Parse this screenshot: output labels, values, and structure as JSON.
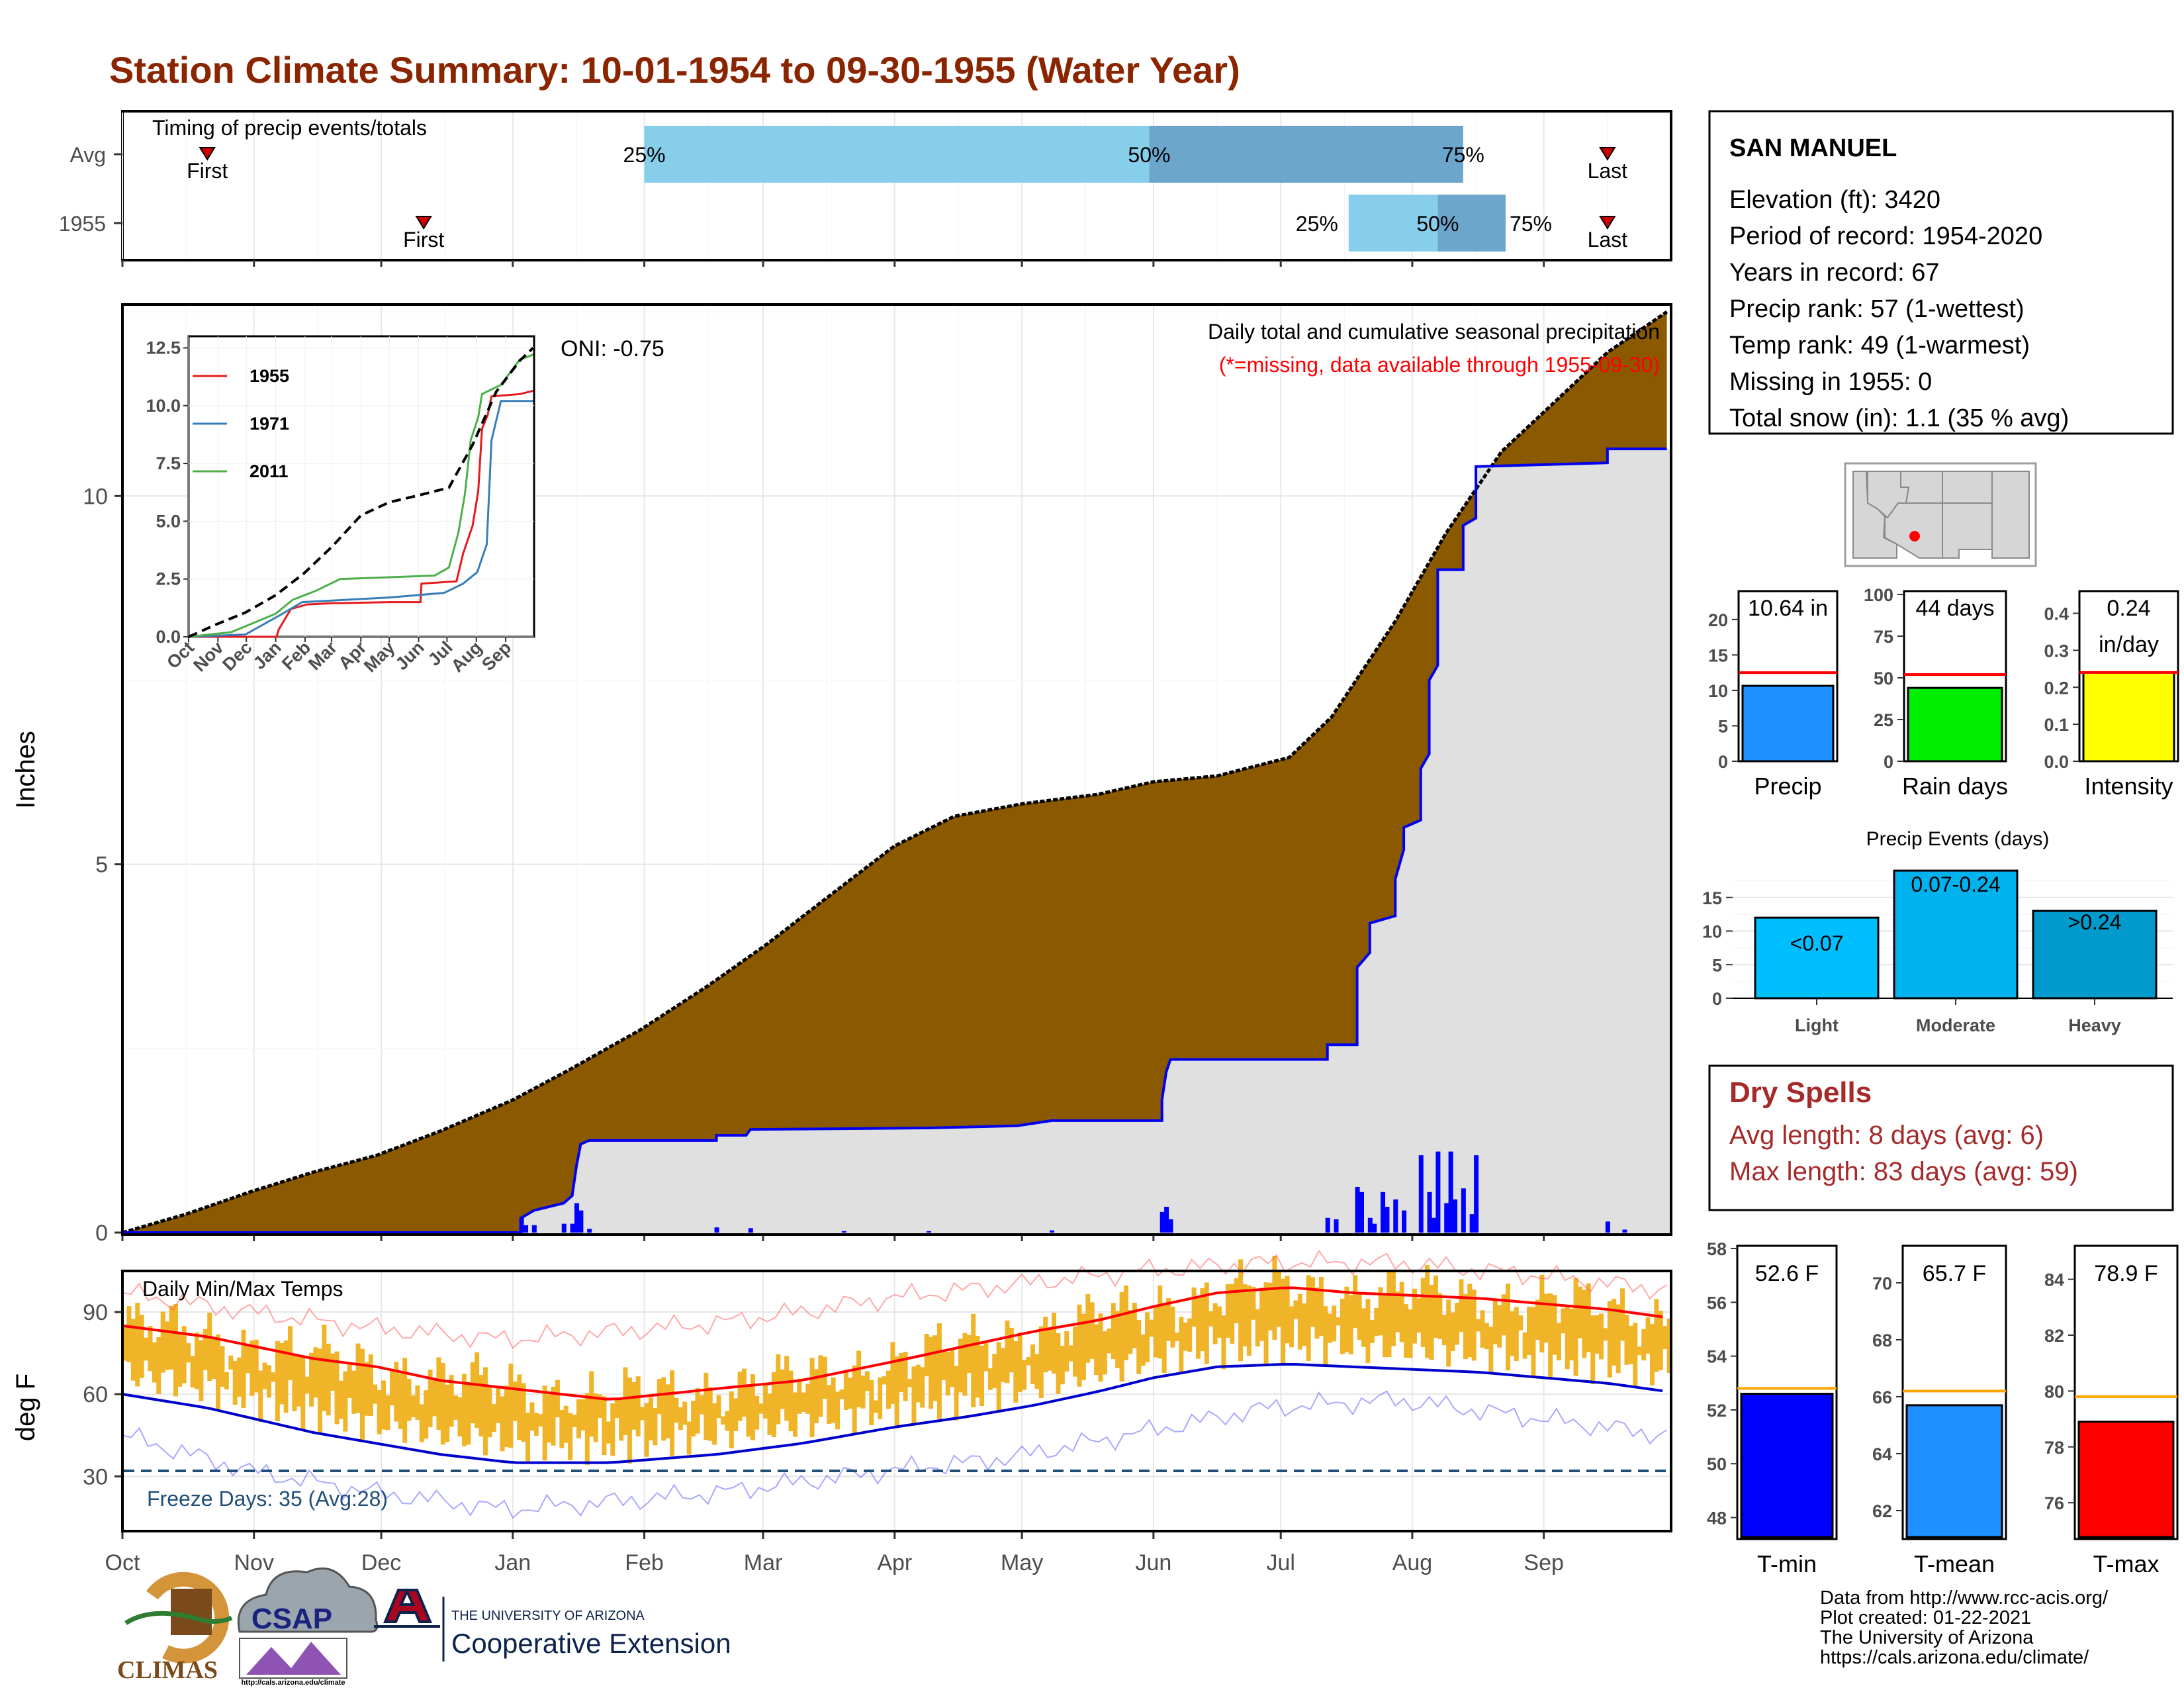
{
  "title": "Station Climate Summary: 10-01-1954 to 09-30-1955 (Water Year)",
  "months": [
    "Oct",
    "Nov",
    "Dec",
    "Jan",
    "Feb",
    "Mar",
    "Apr",
    "May",
    "Jun",
    "Jul",
    "Aug",
    "Sep"
  ],
  "timing_panel": {
    "label": "Timing of precip events/totals",
    "rows": [
      {
        "name": "Avg",
        "first_label": "First",
        "last_label": "Last",
        "first_day": 20,
        "last_day": 350,
        "p25": 123,
        "p50": 242,
        "p75": 316,
        "p25_label": "25%",
        "p50_label": "50%",
        "p75_label": "75%"
      },
      {
        "name": "1955",
        "first_day": 71,
        "last_day": 350,
        "first_label": "First",
        "last_label": "Last",
        "p25": 289,
        "p50": 310,
        "p75": 326,
        "p25_label": "25%",
        "p50_label": "50%",
        "p75_label": "75%"
      }
    ],
    "colors": {
      "light": "#87CEEB",
      "dark": "#6CA6CD",
      "marker": "#CC0000"
    }
  },
  "precip_panel": {
    "ylabel": "Inches",
    "oni_text": "ONI: -0.75",
    "legend_line1": "Daily total and cumulative seasonal precipitation",
    "legend_line2": "(*=missing, data available through 1955-09-30)",
    "ylim": [
      0,
      12.6
    ],
    "yticks": [
      0,
      5,
      10
    ],
    "avg_cumulative": [
      [
        0,
        0
      ],
      [
        15,
        0.25
      ],
      [
        30,
        0.55
      ],
      [
        45,
        0.82
      ],
      [
        60,
        1.05
      ],
      [
        75,
        1.38
      ],
      [
        92,
        1.8
      ],
      [
        105,
        2.2
      ],
      [
        122,
        2.75
      ],
      [
        138,
        3.35
      ],
      [
        152,
        3.92
      ],
      [
        165,
        4.5
      ],
      [
        182,
        5.25
      ],
      [
        196,
        5.65
      ],
      [
        212,
        5.82
      ],
      [
        230,
        5.95
      ],
      [
        243,
        6.12
      ],
      [
        258,
        6.2
      ],
      [
        275,
        6.45
      ],
      [
        285,
        7.0
      ],
      [
        300,
        8.3
      ],
      [
        312,
        9.5
      ],
      [
        325,
        10.6
      ],
      [
        338,
        11.3
      ],
      [
        350,
        11.95
      ],
      [
        364,
        12.5
      ]
    ],
    "obs_cumulative": [
      [
        0,
        0
      ],
      [
        94,
        0
      ],
      [
        94,
        0.2
      ],
      [
        97,
        0.3
      ],
      [
        104,
        0.4
      ],
      [
        106,
        0.5
      ],
      [
        107,
        0.9
      ],
      [
        108,
        1.2
      ],
      [
        110,
        1.25
      ],
      [
        140,
        1.25
      ],
      [
        140,
        1.32
      ],
      [
        147,
        1.32
      ],
      [
        148,
        1.4
      ],
      [
        190,
        1.42
      ],
      [
        211,
        1.45
      ],
      [
        219,
        1.52
      ],
      [
        245,
        1.52
      ],
      [
        245,
        1.8
      ],
      [
        246,
        2.18
      ],
      [
        247,
        2.35
      ],
      [
        284,
        2.35
      ],
      [
        284,
        2.55
      ],
      [
        291,
        2.55
      ],
      [
        291,
        3.6
      ],
      [
        294,
        3.8
      ],
      [
        294,
        4.2
      ],
      [
        300,
        4.3
      ],
      [
        300,
        4.8
      ],
      [
        302,
        5.2
      ],
      [
        302,
        5.5
      ],
      [
        306,
        5.6
      ],
      [
        306,
        6.3
      ],
      [
        308,
        6.5
      ],
      [
        308,
        7.5
      ],
      [
        310,
        7.7
      ],
      [
        310,
        9.0
      ],
      [
        316,
        9.0
      ],
      [
        316,
        9.6
      ],
      [
        319,
        9.7
      ],
      [
        319,
        10.4
      ],
      [
        350,
        10.45
      ],
      [
        350,
        10.64
      ],
      [
        364,
        10.64
      ]
    ],
    "daily_bars": [
      [
        94,
        0.2
      ],
      [
        95,
        0.1
      ],
      [
        97,
        0.1
      ],
      [
        104,
        0.12
      ],
      [
        106,
        0.12
      ],
      [
        107,
        0.4
      ],
      [
        108,
        0.3
      ],
      [
        110,
        0.05
      ],
      [
        140,
        0.07
      ],
      [
        148,
        0.06
      ],
      [
        170,
        0.02
      ],
      [
        190,
        0.02
      ],
      [
        219,
        0.03
      ],
      [
        245,
        0.28
      ],
      [
        246,
        0.35
      ],
      [
        247,
        0.18
      ],
      [
        284,
        0.2
      ],
      [
        286,
        0.18
      ],
      [
        291,
        0.62
      ],
      [
        292,
        0.55
      ],
      [
        294,
        0.2
      ],
      [
        295,
        0.12
      ],
      [
        297,
        0.55
      ],
      [
        298,
        0.35
      ],
      [
        300,
        0.45
      ],
      [
        302,
        0.3
      ],
      [
        306,
        1.05
      ],
      [
        308,
        0.55
      ],
      [
        309,
        0.2
      ],
      [
        310,
        1.1
      ],
      [
        312,
        0.4
      ],
      [
        313,
        1.1
      ],
      [
        314,
        0.45
      ],
      [
        316,
        0.6
      ],
      [
        318,
        0.25
      ],
      [
        319,
        1.05
      ],
      [
        350,
        0.15
      ],
      [
        354,
        0.04
      ]
    ],
    "colors": {
      "surplus": "#8B5A00",
      "observed_fill": "#E0E0E0",
      "line": "#0000EE",
      "bar": "#0000FF"
    }
  },
  "inset": {
    "yticks": [
      0.0,
      2.5,
      5.0,
      7.5,
      10.0,
      12.5
    ],
    "yticklabels": [
      "0.0",
      "2.5",
      "5.0",
      "7.5",
      "10.0",
      "12.5"
    ],
    "months": [
      "Oct",
      "Nov",
      "Dec",
      "Jan",
      "Feb",
      "Mar",
      "Apr",
      "May",
      "Jun",
      "Jul",
      "Aug",
      "Sep"
    ],
    "series": [
      {
        "name": "1955",
        "color": "#E41A1C",
        "points": [
          [
            0,
            0
          ],
          [
            93,
            0
          ],
          [
            95,
            0.3
          ],
          [
            108,
            1.2
          ],
          [
            125,
            1.4
          ],
          [
            150,
            1.45
          ],
          [
            212,
            1.5
          ],
          [
            245,
            1.5
          ],
          [
            246,
            2.3
          ],
          [
            283,
            2.4
          ],
          [
            290,
            3.6
          ],
          [
            300,
            4.8
          ],
          [
            306,
            6.3
          ],
          [
            310,
            9.0
          ],
          [
            316,
            9.6
          ],
          [
            320,
            10.4
          ],
          [
            350,
            10.5
          ],
          [
            364,
            10.64
          ]
        ]
      },
      {
        "name": "1971",
        "color": "#377EB8",
        "points": [
          [
            0,
            0
          ],
          [
            60,
            0.1
          ],
          [
            95,
            0.9
          ],
          [
            120,
            1.5
          ],
          [
            212,
            1.7
          ],
          [
            270,
            1.9
          ],
          [
            290,
            2.3
          ],
          [
            305,
            2.8
          ],
          [
            315,
            4.0
          ],
          [
            320,
            8.5
          ],
          [
            330,
            10.2
          ],
          [
            364,
            10.2
          ]
        ]
      },
      {
        "name": "2011",
        "color": "#4DAF4A",
        "points": [
          [
            0,
            0
          ],
          [
            45,
            0.2
          ],
          [
            92,
            1.0
          ],
          [
            110,
            1.6
          ],
          [
            135,
            2.0
          ],
          [
            160,
            2.5
          ],
          [
            260,
            2.65
          ],
          [
            275,
            3.0
          ],
          [
            285,
            4.5
          ],
          [
            292,
            6.2
          ],
          [
            298,
            8.5
          ],
          [
            306,
            9.5
          ],
          [
            310,
            10.5
          ],
          [
            330,
            10.9
          ],
          [
            350,
            12.0
          ],
          [
            364,
            12.2
          ]
        ]
      },
      {
        "name": "avg",
        "color": "#000000",
        "dashed": true,
        "points": [
          [
            0,
            0
          ],
          [
            30,
            0.55
          ],
          [
            60,
            1.05
          ],
          [
            92,
            1.8
          ],
          [
            122,
            2.75
          ],
          [
            152,
            3.92
          ],
          [
            182,
            5.25
          ],
          [
            212,
            5.82
          ],
          [
            243,
            6.12
          ],
          [
            275,
            6.45
          ],
          [
            300,
            8.3
          ],
          [
            325,
            10.6
          ],
          [
            350,
            11.95
          ],
          [
            364,
            12.5
          ]
        ]
      }
    ]
  },
  "temp_panel": {
    "label": "Daily Min/Max Temps",
    "ylabel": "deg F",
    "yticks": [
      30,
      60,
      90
    ],
    "ylim": [
      10,
      105
    ],
    "freeze_label": "Freeze Days: 35 (Avg:28)",
    "freeze_line": 32,
    "avg_max": [
      [
        0,
        85
      ],
      [
        20,
        81
      ],
      [
        45,
        73
      ],
      [
        60,
        70
      ],
      [
        75,
        65
      ],
      [
        92,
        62
      ],
      [
        115,
        58
      ],
      [
        140,
        62
      ],
      [
        160,
        65
      ],
      [
        182,
        72
      ],
      [
        200,
        78
      ],
      [
        215,
        83
      ],
      [
        230,
        87
      ],
      [
        243,
        92
      ],
      [
        258,
        97
      ],
      [
        275,
        99
      ],
      [
        290,
        97
      ],
      [
        305,
        96
      ],
      [
        320,
        95
      ],
      [
        335,
        93
      ],
      [
        350,
        91
      ],
      [
        364,
        88
      ]
    ],
    "avg_min": [
      [
        0,
        60
      ],
      [
        20,
        55
      ],
      [
        45,
        46
      ],
      [
        60,
        42
      ],
      [
        75,
        38
      ],
      [
        92,
        35
      ],
      [
        115,
        35
      ],
      [
        140,
        38
      ],
      [
        160,
        42
      ],
      [
        182,
        48
      ],
      [
        200,
        52
      ],
      [
        215,
        56
      ],
      [
        230,
        61
      ],
      [
        243,
        66
      ],
      [
        258,
        70
      ],
      [
        275,
        71
      ],
      [
        290,
        70
      ],
      [
        305,
        69
      ],
      [
        320,
        68
      ],
      [
        335,
        66
      ],
      [
        350,
        64
      ],
      [
        364,
        61
      ]
    ],
    "rec_max": [
      [
        0,
        97
      ],
      [
        30,
        90
      ],
      [
        60,
        84
      ],
      [
        90,
        80
      ],
      [
        110,
        82
      ],
      [
        140,
        86
      ],
      [
        160,
        90
      ],
      [
        180,
        95
      ],
      [
        210,
        100
      ],
      [
        240,
        105
      ],
      [
        270,
        108
      ],
      [
        300,
        108
      ],
      [
        330,
        104
      ],
      [
        364,
        98
      ]
    ],
    "rec_min": [
      [
        0,
        45
      ],
      [
        30,
        32
      ],
      [
        60,
        24
      ],
      [
        90,
        18
      ],
      [
        110,
        20
      ],
      [
        140,
        24
      ],
      [
        160,
        28
      ],
      [
        180,
        32
      ],
      [
        210,
        37
      ],
      [
        240,
        46
      ],
      [
        270,
        55
      ],
      [
        300,
        58
      ],
      [
        330,
        52
      ],
      [
        364,
        45
      ]
    ],
    "colors": {
      "band": "#F0B429",
      "max": "#FF0000",
      "min": "#0000CC",
      "freeze": "#1F4E79"
    }
  },
  "station_box": {
    "name": "SAN MANUEL",
    "lines": [
      "Elevation (ft): 3420",
      "Period of record: 1954-2020",
      "Years in record: 67",
      "Precip rank: 57 (1-wettest)",
      "Temp rank: 49 (1-warmest)",
      "Missing in 1955: 0",
      "Total snow (in): 1.1 (35 % avg)"
    ]
  },
  "summary_bars": [
    {
      "label": "Precip",
      "value_label": "10.64 in",
      "value": 10.64,
      "avg": 12.5,
      "ylim": [
        0,
        24
      ],
      "yticks": [
        0,
        5,
        10,
        15,
        20
      ],
      "color": "#1E90FF"
    },
    {
      "label": "Rain days",
      "value_label": "44 days",
      "value": 44,
      "avg": 52,
      "ylim": [
        0,
        102
      ],
      "yticks": [
        0,
        25,
        50,
        75,
        100
      ],
      "color": "#00EE00"
    },
    {
      "label": "Intensity",
      "value_label": "0.24",
      "value_label2": "in/day",
      "value": 0.24,
      "avg": 0.24,
      "ylim": [
        0,
        0.46
      ],
      "yticks": [
        0.0,
        0.1,
        0.2,
        0.3,
        0.4
      ],
      "yticklabels": [
        "0.0",
        "0.1",
        "0.2",
        "0.3",
        "0.4"
      ],
      "color": "#FFFF00"
    }
  ],
  "events_panel": {
    "title": "Precip Events (days)",
    "categories": [
      "Light",
      "Moderate",
      "Heavy"
    ],
    "bar_labels": [
      "<0.07",
      "0.07-0.24",
      ">0.24"
    ],
    "values": [
      12,
      19,
      13
    ],
    "ylim": [
      0,
      20
    ],
    "yticks": [
      0,
      5,
      10,
      15
    ],
    "colors": [
      "#00BFFF",
      "#00B2EE",
      "#009ACD"
    ]
  },
  "dry_spells": {
    "title": "Dry Spells",
    "avg_line": "Avg length: 8 days (avg: 6)",
    "max_line": "Max length: 83 days (avg: 59)",
    "color": "#A52A2A"
  },
  "temp_bars": [
    {
      "label": "T-min",
      "value_label": "52.6 F",
      "value": 52.6,
      "avg": 52.8,
      "ylim": [
        47.2,
        58.1
      ],
      "yticks": [
        48,
        50,
        52,
        54,
        56,
        58
      ],
      "color": "#0000FF"
    },
    {
      "label": "T-mean",
      "value_label": "65.7 F",
      "value": 65.7,
      "avg": 66.2,
      "ylim": [
        61.0,
        71.3
      ],
      "yticks": [
        62,
        64,
        66,
        68,
        70
      ],
      "color": "#1E90FF"
    },
    {
      "label": "T-max",
      "value_label": "78.9 F",
      "value": 78.9,
      "avg": 79.8,
      "ylim": [
        74.7,
        85.2
      ],
      "yticks": [
        76,
        78,
        80,
        82,
        84
      ],
      "color": "#FF0000"
    }
  ],
  "footer": {
    "lines": [
      "Data from http://www.rcc-acis.org/",
      "Plot created: 01-22-2021",
      "The University of Arizona",
      "https://cals.arizona.edu/climate/"
    ]
  },
  "logos": {
    "climas": "CLIMAS",
    "csap": "CSAP",
    "csap_url": "http://cals.arizona.edu/climate",
    "ua_top": "THE UNIVERSITY OF ARIZONA",
    "ua_bottom": "Cooperative Extension"
  }
}
